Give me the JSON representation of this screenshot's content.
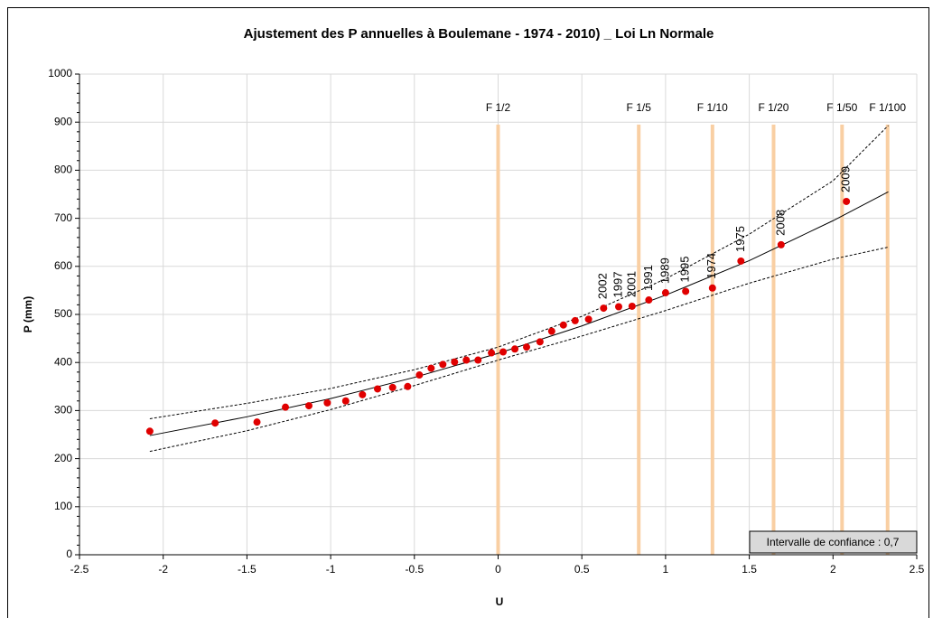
{
  "chart_data": {
    "type": "scatter",
    "title": "Ajustement des P annuelles à  Boulemane - 1974 - 2010) _   Loi Ln Normale",
    "x_label": "U",
    "y_label": "P (mm)",
    "xlim": [
      -2.5,
      2.5
    ],
    "ylim": [
      0,
      1000
    ],
    "xticks": [
      -2.5,
      -2,
      -1.5,
      -1,
      -0.5,
      0,
      0.5,
      1,
      1.5,
      2,
      2.5
    ],
    "yticks": [
      0,
      100,
      200,
      300,
      400,
      500,
      600,
      700,
      800,
      900,
      1000
    ],
    "grid": true,
    "series": [
      {
        "style": "dashed",
        "color": "#000000",
        "x": [
          -2.08,
          -1.5,
          -1,
          -0.5,
          0,
          0.5,
          1,
          1.5,
          2,
          2.33
        ],
        "values": [
          283,
          315,
          346,
          385,
          432,
          496,
          574,
          667,
          778,
          893
        ]
      },
      {
        "style": "dashed",
        "color": "#000000",
        "x": [
          -2.08,
          -1.5,
          -1,
          -0.5,
          0,
          0.5,
          1,
          1.5,
          2,
          2.33
        ],
        "values": [
          215,
          258,
          302,
          352,
          405,
          455,
          508,
          565,
          615,
          640
        ]
      },
      {
        "style": "solid",
        "color": "#000000",
        "x": [
          -2.08,
          -1.5,
          -1,
          -0.5,
          0,
          0.5,
          1,
          1.5,
          2,
          2.33
        ],
        "values": [
          248,
          287,
          325,
          369,
          419,
          476,
          540,
          612,
          695,
          755
        ]
      },
      {
        "style": "markers",
        "color": "#e00000",
        "x": [
          -2.08,
          -1.69,
          -1.44,
          -1.27,
          -1.13,
          -1.02,
          -0.91,
          -0.81,
          -0.72,
          -0.63,
          -0.54,
          -0.47,
          -0.4,
          -0.33,
          -0.26,
          -0.19,
          -0.12,
          -0.04,
          0.03,
          0.1,
          0.17,
          0.25,
          0.32,
          0.39,
          0.46,
          0.54,
          0.63,
          0.72,
          0.8,
          0.9,
          1.0,
          1.12,
          1.28,
          1.45,
          1.69,
          2.08
        ],
        "values": [
          257,
          274,
          276,
          307,
          310,
          316,
          320,
          333,
          345,
          348,
          350,
          374,
          388,
          396,
          401,
          405,
          405,
          420,
          422,
          428,
          432,
          443,
          465,
          478,
          487,
          490,
          513,
          516,
          517,
          530,
          545,
          548,
          555,
          611,
          645,
          735
        ],
        "point_labels": [
          null,
          null,
          null,
          null,
          null,
          null,
          null,
          null,
          null,
          null,
          null,
          null,
          null,
          null,
          null,
          null,
          null,
          null,
          null,
          null,
          null,
          null,
          null,
          null,
          null,
          null,
          "2002",
          "1997",
          "2001",
          "1991",
          "1989",
          "1995",
          "1974",
          "1975",
          "2008",
          "2009"
        ]
      }
    ],
    "return_periods": [
      {
        "label": "F 1/2",
        "u": 0
      },
      {
        "label": "F 1/5",
        "u": 0.84
      },
      {
        "label": "F 1/10",
        "u": 1.28
      },
      {
        "label": "F 1/20",
        "u": 1.645
      },
      {
        "label": "F 1/50",
        "u": 2.054
      },
      {
        "label": "F 1/100",
        "u": 2.326
      }
    ],
    "return_line_top": 895,
    "return_line_color": "#f9cfa3",
    "note": "Intervalle de confiance : 0,7"
  }
}
